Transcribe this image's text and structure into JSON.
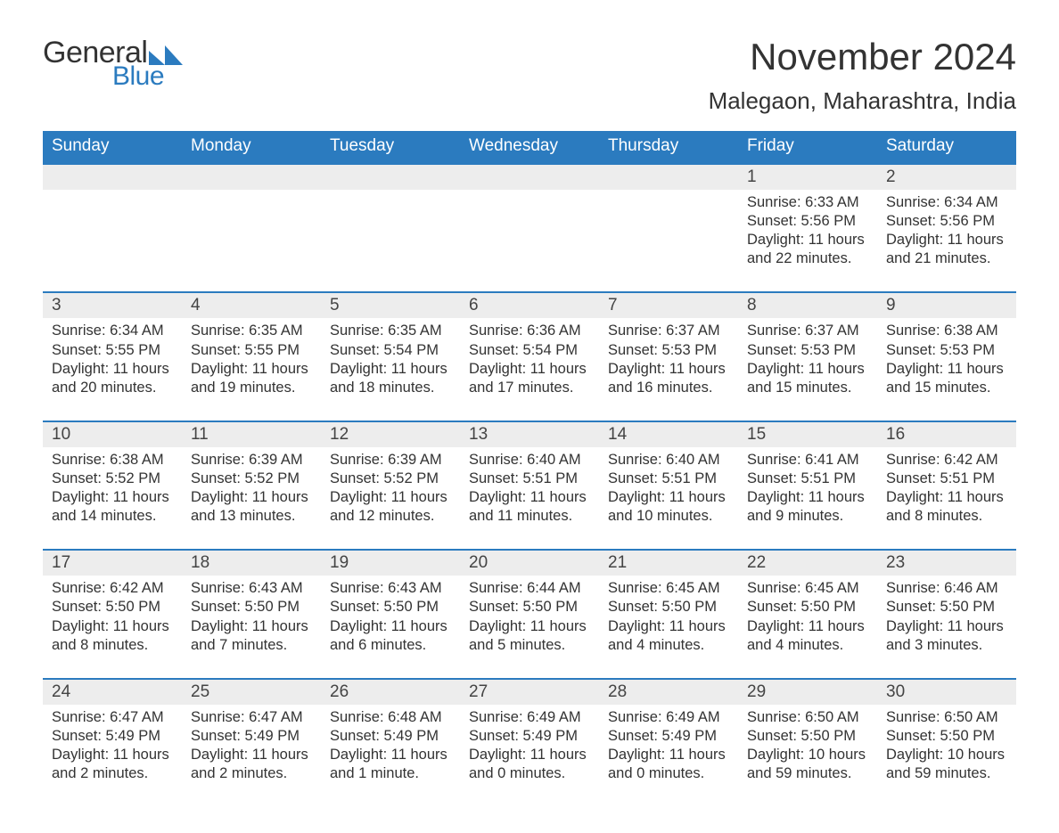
{
  "logo": {
    "word1": "General",
    "word2": "Blue",
    "accent_color": "#2b7bbf"
  },
  "title": "November 2024",
  "location": "Malegaon, Maharashtra, India",
  "columns": [
    "Sunday",
    "Monday",
    "Tuesday",
    "Wednesday",
    "Thursday",
    "Friday",
    "Saturday"
  ],
  "header_bg": "#2b7bbf",
  "header_fg": "#ffffff",
  "row_accent": "#2b7bbf",
  "daynum_bg": "#ededed",
  "text_color": "#333333",
  "weeks": [
    [
      null,
      null,
      null,
      null,
      null,
      {
        "n": "1",
        "sr": "6:33 AM",
        "ss": "5:56 PM",
        "dl": "11 hours and 22 minutes."
      },
      {
        "n": "2",
        "sr": "6:34 AM",
        "ss": "5:56 PM",
        "dl": "11 hours and 21 minutes."
      }
    ],
    [
      {
        "n": "3",
        "sr": "6:34 AM",
        "ss": "5:55 PM",
        "dl": "11 hours and 20 minutes."
      },
      {
        "n": "4",
        "sr": "6:35 AM",
        "ss": "5:55 PM",
        "dl": "11 hours and 19 minutes."
      },
      {
        "n": "5",
        "sr": "6:35 AM",
        "ss": "5:54 PM",
        "dl": "11 hours and 18 minutes."
      },
      {
        "n": "6",
        "sr": "6:36 AM",
        "ss": "5:54 PM",
        "dl": "11 hours and 17 minutes."
      },
      {
        "n": "7",
        "sr": "6:37 AM",
        "ss": "5:53 PM",
        "dl": "11 hours and 16 minutes."
      },
      {
        "n": "8",
        "sr": "6:37 AM",
        "ss": "5:53 PM",
        "dl": "11 hours and 15 minutes."
      },
      {
        "n": "9",
        "sr": "6:38 AM",
        "ss": "5:53 PM",
        "dl": "11 hours and 15 minutes."
      }
    ],
    [
      {
        "n": "10",
        "sr": "6:38 AM",
        "ss": "5:52 PM",
        "dl": "11 hours and 14 minutes."
      },
      {
        "n": "11",
        "sr": "6:39 AM",
        "ss": "5:52 PM",
        "dl": "11 hours and 13 minutes."
      },
      {
        "n": "12",
        "sr": "6:39 AM",
        "ss": "5:52 PM",
        "dl": "11 hours and 12 minutes."
      },
      {
        "n": "13",
        "sr": "6:40 AM",
        "ss": "5:51 PM",
        "dl": "11 hours and 11 minutes."
      },
      {
        "n": "14",
        "sr": "6:40 AM",
        "ss": "5:51 PM",
        "dl": "11 hours and 10 minutes."
      },
      {
        "n": "15",
        "sr": "6:41 AM",
        "ss": "5:51 PM",
        "dl": "11 hours and 9 minutes."
      },
      {
        "n": "16",
        "sr": "6:42 AM",
        "ss": "5:51 PM",
        "dl": "11 hours and 8 minutes."
      }
    ],
    [
      {
        "n": "17",
        "sr": "6:42 AM",
        "ss": "5:50 PM",
        "dl": "11 hours and 8 minutes."
      },
      {
        "n": "18",
        "sr": "6:43 AM",
        "ss": "5:50 PM",
        "dl": "11 hours and 7 minutes."
      },
      {
        "n": "19",
        "sr": "6:43 AM",
        "ss": "5:50 PM",
        "dl": "11 hours and 6 minutes."
      },
      {
        "n": "20",
        "sr": "6:44 AM",
        "ss": "5:50 PM",
        "dl": "11 hours and 5 minutes."
      },
      {
        "n": "21",
        "sr": "6:45 AM",
        "ss": "5:50 PM",
        "dl": "11 hours and 4 minutes."
      },
      {
        "n": "22",
        "sr": "6:45 AM",
        "ss": "5:50 PM",
        "dl": "11 hours and 4 minutes."
      },
      {
        "n": "23",
        "sr": "6:46 AM",
        "ss": "5:50 PM",
        "dl": "11 hours and 3 minutes."
      }
    ],
    [
      {
        "n": "24",
        "sr": "6:47 AM",
        "ss": "5:49 PM",
        "dl": "11 hours and 2 minutes."
      },
      {
        "n": "25",
        "sr": "6:47 AM",
        "ss": "5:49 PM",
        "dl": "11 hours and 2 minutes."
      },
      {
        "n": "26",
        "sr": "6:48 AM",
        "ss": "5:49 PM",
        "dl": "11 hours and 1 minute."
      },
      {
        "n": "27",
        "sr": "6:49 AM",
        "ss": "5:49 PM",
        "dl": "11 hours and 0 minutes."
      },
      {
        "n": "28",
        "sr": "6:49 AM",
        "ss": "5:49 PM",
        "dl": "11 hours and 0 minutes."
      },
      {
        "n": "29",
        "sr": "6:50 AM",
        "ss": "5:50 PM",
        "dl": "10 hours and 59 minutes."
      },
      {
        "n": "30",
        "sr": "6:50 AM",
        "ss": "5:50 PM",
        "dl": "10 hours and 59 minutes."
      }
    ]
  ],
  "labels": {
    "sunrise": "Sunrise: ",
    "sunset": "Sunset: ",
    "daylight": "Daylight: "
  }
}
